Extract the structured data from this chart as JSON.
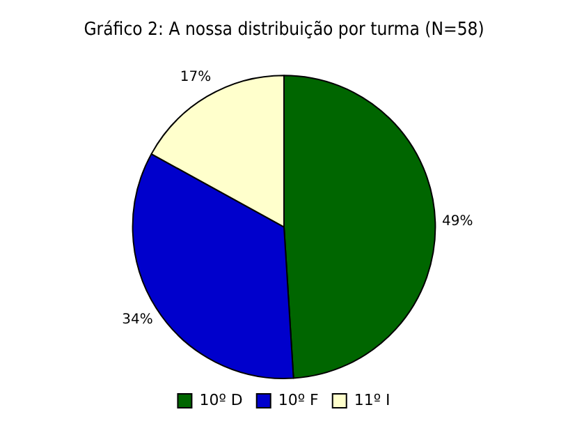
{
  "chart_data": {
    "type": "pie",
    "title": "Gráfico 2: A nossa distribuição por turma (N=58)",
    "categories": [
      "10º D",
      "10º F",
      "11º I"
    ],
    "values": [
      49,
      34,
      17
    ],
    "colors": [
      "#006600",
      "#0000cc",
      "#ffffcc"
    ],
    "value_labels": [
      "49%",
      "34%",
      "17%"
    ],
    "legend": "bottom"
  }
}
